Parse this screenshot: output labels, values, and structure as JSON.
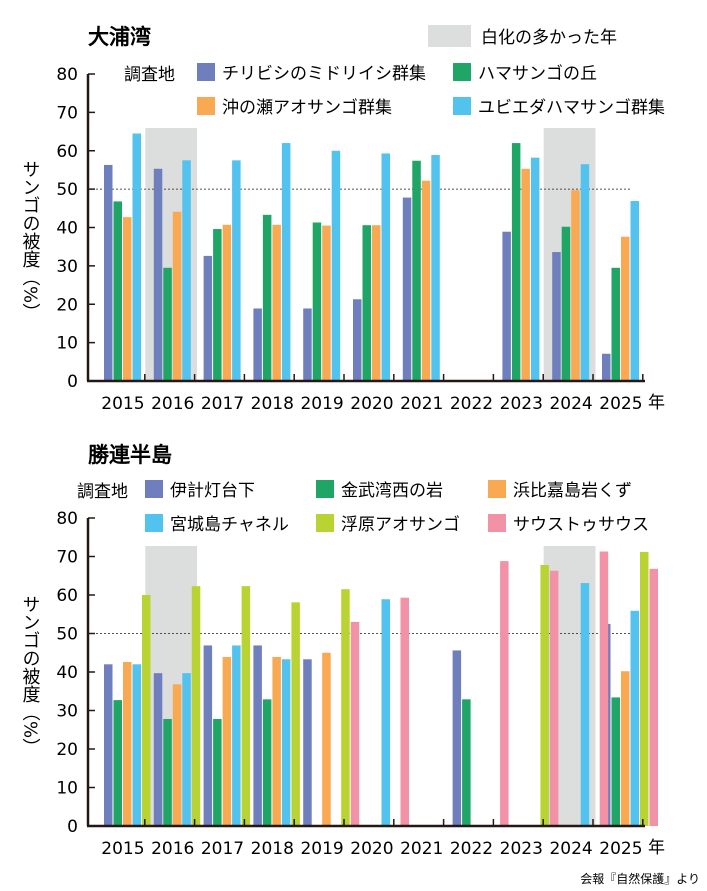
{
  "source": "会報『自然保護』より",
  "bleaching_legend": "白化の多かった年",
  "ylabel": "サンゴの被度（%）",
  "year_suffix": "年",
  "chart_data": [
    {
      "type": "bar",
      "title": "大浦湾",
      "legend_title": "調査地",
      "categories": [
        "2015",
        "2016",
        "2017",
        "2018",
        "2019",
        "2020",
        "2021",
        "2022",
        "2023",
        "2024",
        "2025"
      ],
      "ylim": [
        0,
        80
      ],
      "yticks": [
        0,
        10,
        20,
        30,
        40,
        50,
        60,
        70,
        80
      ],
      "reference_line": 50,
      "bleaching_years": [
        "2016",
        "2024"
      ],
      "series": [
        {
          "name": "チリビシのミドリイシ群集",
          "color": "#6f7fbd",
          "values": [
            56.3,
            55.3,
            32.6,
            18.9,
            18.9,
            21.3,
            47.8,
            null,
            38.9,
            33.6,
            7.1
          ]
        },
        {
          "name": "ハマサンゴの丘",
          "color": "#1fa565",
          "values": [
            46.8,
            29.5,
            39.6,
            43.3,
            41.3,
            40.6,
            57.4,
            null,
            62.0,
            40.2,
            29.5
          ]
        },
        {
          "name": "沖の瀬アオサンゴ群集",
          "color": "#f8a952",
          "values": [
            42.7,
            44.1,
            40.7,
            40.7,
            40.5,
            40.6,
            52.2,
            null,
            55.3,
            49.7,
            37.6
          ]
        },
        {
          "name": "ユビエダハマサンゴ群集",
          "color": "#52c3ee",
          "values": [
            64.5,
            57.5,
            57.5,
            62.0,
            60.0,
            59.3,
            58.9,
            null,
            58.2,
            56.5,
            46.9
          ]
        }
      ]
    },
    {
      "type": "bar",
      "title": "勝連半島",
      "legend_title": "調査地",
      "categories": [
        "2015",
        "2016",
        "2017",
        "2018",
        "2019",
        "2020",
        "2021",
        "2022",
        "2023",
        "2024",
        "2025"
      ],
      "ylim": [
        0,
        80
      ],
      "yticks": [
        0,
        10,
        20,
        30,
        40,
        50,
        60,
        70,
        80
      ],
      "reference_line": 50,
      "bleaching_years": [
        "2016",
        "2024"
      ],
      "series": [
        {
          "name": "伊計灯台下",
          "color": "#6f7fbd",
          "values": [
            42.0,
            39.7,
            46.9,
            46.9,
            43.3,
            null,
            null,
            45.6,
            null,
            null,
            52.5
          ]
        },
        {
          "name": "金武湾西の岩",
          "color": "#1fa565",
          "values": [
            32.7,
            27.8,
            27.8,
            32.9,
            null,
            null,
            null,
            32.9,
            null,
            null,
            33.4
          ]
        },
        {
          "name": "浜比嘉島岩くず",
          "color": "#f8a952",
          "values": [
            42.6,
            36.8,
            43.9,
            43.9,
            45.0,
            null,
            null,
            null,
            null,
            null,
            40.2
          ]
        },
        {
          "name": "宮城島チャネル",
          "color": "#52c3ee",
          "values": [
            42.0,
            39.7,
            46.9,
            43.3,
            null,
            58.9,
            null,
            null,
            null,
            63.1,
            55.9
          ]
        },
        {
          "name": "浮原アオサンゴ",
          "color": "#b9d432",
          "values": [
            60.0,
            62.3,
            62.3,
            58.1,
            61.5,
            null,
            null,
            null,
            67.8,
            null,
            71.2
          ]
        },
        {
          "name": "サウストゥサウス",
          "color": "#f192a6",
          "values": [
            null,
            null,
            null,
            null,
            53.0,
            59.3,
            null,
            68.8,
            66.3,
            71.3,
            66.8
          ]
        }
      ]
    }
  ]
}
